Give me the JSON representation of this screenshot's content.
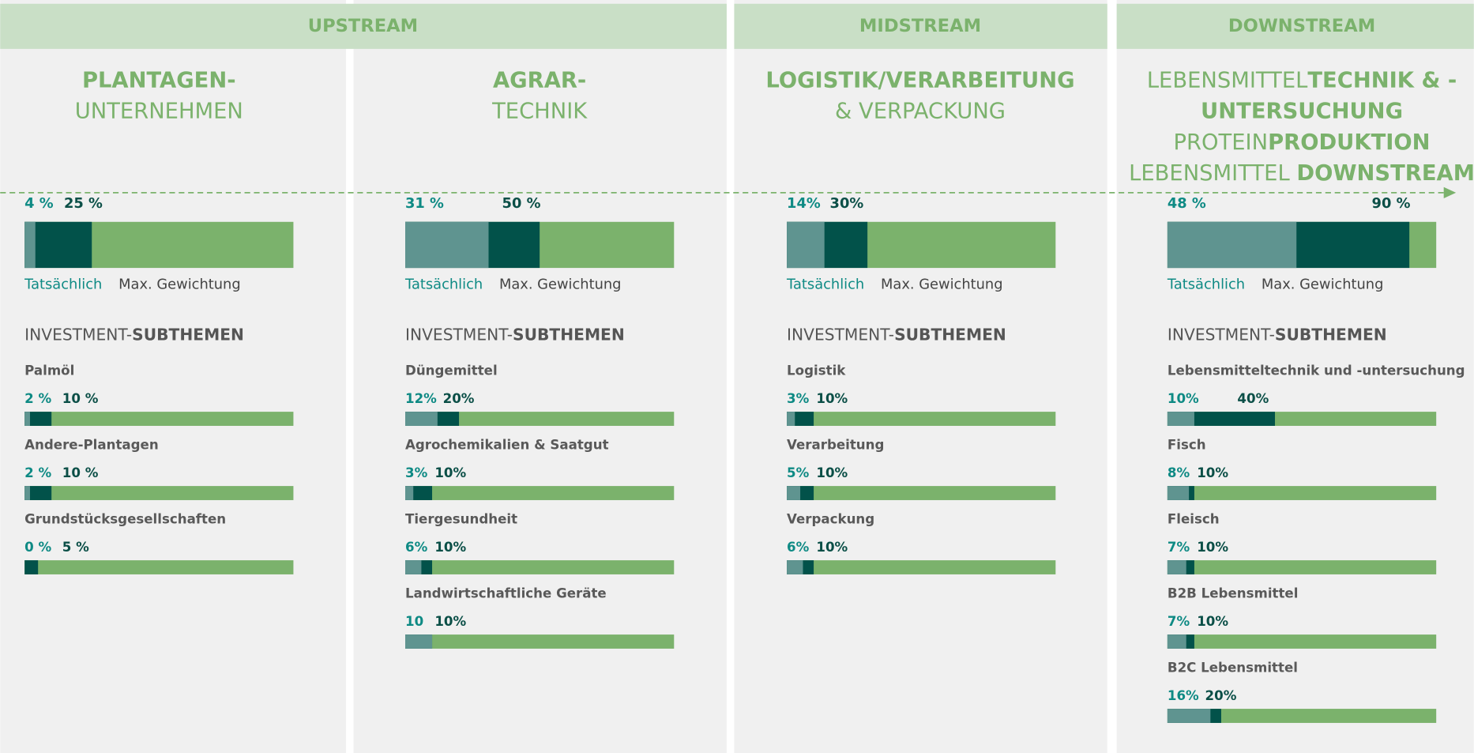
{
  "stages": [
    "UPSTREAM",
    "MIDSTREAM",
    "DOWNSTREAM"
  ],
  "columns": [
    {
      "title": [
        [
          {
            "text": "PLANTAGEN-",
            "bold": true
          }
        ],
        [
          {
            "text": "UNTERNEHMEN"
          }
        ]
      ],
      "actual": 4,
      "actual_label": "4 %",
      "max": 25,
      "max_label": "25 %",
      "legend_actual": "Tatsächlich",
      "legend_max": "Max. Gewichtung",
      "subthemes_heading": [
        {
          "text": "INVESTMENT-"
        },
        {
          "text": "SUBTHEMEN",
          "bold": true
        }
      ],
      "subthemes": [
        {
          "name": "Palmöl",
          "actual": 2,
          "actual_label": "2 %",
          "max": 10,
          "max_label": "10 %"
        },
        {
          "name": "Andere-Plantagen",
          "actual": 2,
          "actual_label": "2 %",
          "max": 10,
          "max_label": "10 %"
        },
        {
          "name": "Grundstücksgesellschaften",
          "actual": 0,
          "actual_label": "0 %",
          "max": 5,
          "max_label": "5 %"
        }
      ]
    },
    {
      "title": [
        [
          {
            "text": "AGRAR-",
            "bold": true
          }
        ],
        [
          {
            "text": "TECHNIK"
          }
        ]
      ],
      "actual": 31,
      "actual_label": "31 %",
      "max": 50,
      "max_label": "50 %",
      "legend_actual": "Tatsächlich",
      "legend_max": "Max. Gewichtung",
      "subthemes_heading": [
        {
          "text": "INVESTMENT-"
        },
        {
          "text": "SUBTHEMEN",
          "bold": true
        }
      ],
      "subthemes": [
        {
          "name": "Düngemittel",
          "actual": 12,
          "actual_label": "12%",
          "max": 20,
          "max_label": "20%"
        },
        {
          "name": "Agrochemikalien & Saatgut",
          "actual": 3,
          "actual_label": "3%",
          "max": 10,
          "max_label": "10%"
        },
        {
          "name": "Tiergesundheit",
          "actual": 6,
          "actual_label": "6%",
          "max": 10,
          "max_label": "10%"
        },
        {
          "name": "Landwirtschaftliche Geräte",
          "actual": 10,
          "actual_label": "10",
          "max": 10,
          "max_label": "10%"
        }
      ]
    },
    {
      "title": [
        [
          {
            "text": "LOGISTIK/VERARBEITUNG",
            "bold": true
          }
        ],
        [
          {
            "text": "& VERPACKUNG"
          }
        ]
      ],
      "actual": 14,
      "actual_label": "14%",
      "max": 30,
      "max_label": "30%",
      "legend_actual": "Tatsächlich",
      "legend_max": "Max. Gewichtung",
      "subthemes_heading": [
        {
          "text": "INVESTMENT-"
        },
        {
          "text": "SUBTHEMEN",
          "bold": true
        }
      ],
      "subthemes": [
        {
          "name": "Logistik",
          "actual": 3,
          "actual_label": "3%",
          "max": 10,
          "max_label": "10%"
        },
        {
          "name": "Verarbeitung",
          "actual": 5,
          "actual_label": "5%",
          "max": 10,
          "max_label": "10%"
        },
        {
          "name": "Verpackung",
          "actual": 6,
          "actual_label": "6%",
          "max": 10,
          "max_label": "10%"
        }
      ]
    },
    {
      "title": [
        [
          {
            "text": "LEBENSMITTEL"
          },
          {
            "text": "TECHNIK & -",
            "bold": true
          }
        ],
        [
          {
            "text": "UNTERSUCHUNG",
            "bold": true
          }
        ],
        [
          {
            "text": "PROTEIN"
          },
          {
            "text": "PRODUKTION",
            "bold": true
          }
        ],
        [
          {
            "text": "LEBENSMITTEL "
          },
          {
            "text": "DOWNSTREAM",
            "bold": true
          }
        ]
      ],
      "actual": 48,
      "actual_label": "48 %",
      "max": 90,
      "max_label": "90 %",
      "legend_actual": "Tatsächlich",
      "legend_max": "Max. Gewichtung",
      "subthemes_heading": [
        {
          "text": "INVESTMENT-"
        },
        {
          "text": "SUBTHEMEN",
          "bold": true
        }
      ],
      "subthemes": [
        {
          "name": "Lebensmitteltechnik und -untersuchung",
          "actual": 10,
          "actual_label": "10%",
          "max": 40,
          "max_label": "40%"
        },
        {
          "name": "Fisch",
          "actual": 8,
          "actual_label": "8%",
          "max": 10,
          "max_label": "10%"
        },
        {
          "name": "Fleisch",
          "actual": 7,
          "actual_label": "7%",
          "max": 10,
          "max_label": "10%"
        },
        {
          "name": "B2B Lebensmittel",
          "actual": 7,
          "actual_label": "7%",
          "max": 10,
          "max_label": "10%"
        },
        {
          "name": "B2C Lebensmittel",
          "actual": 16,
          "actual_label": "16%",
          "max": 20,
          "max_label": "20%"
        }
      ]
    }
  ]
}
